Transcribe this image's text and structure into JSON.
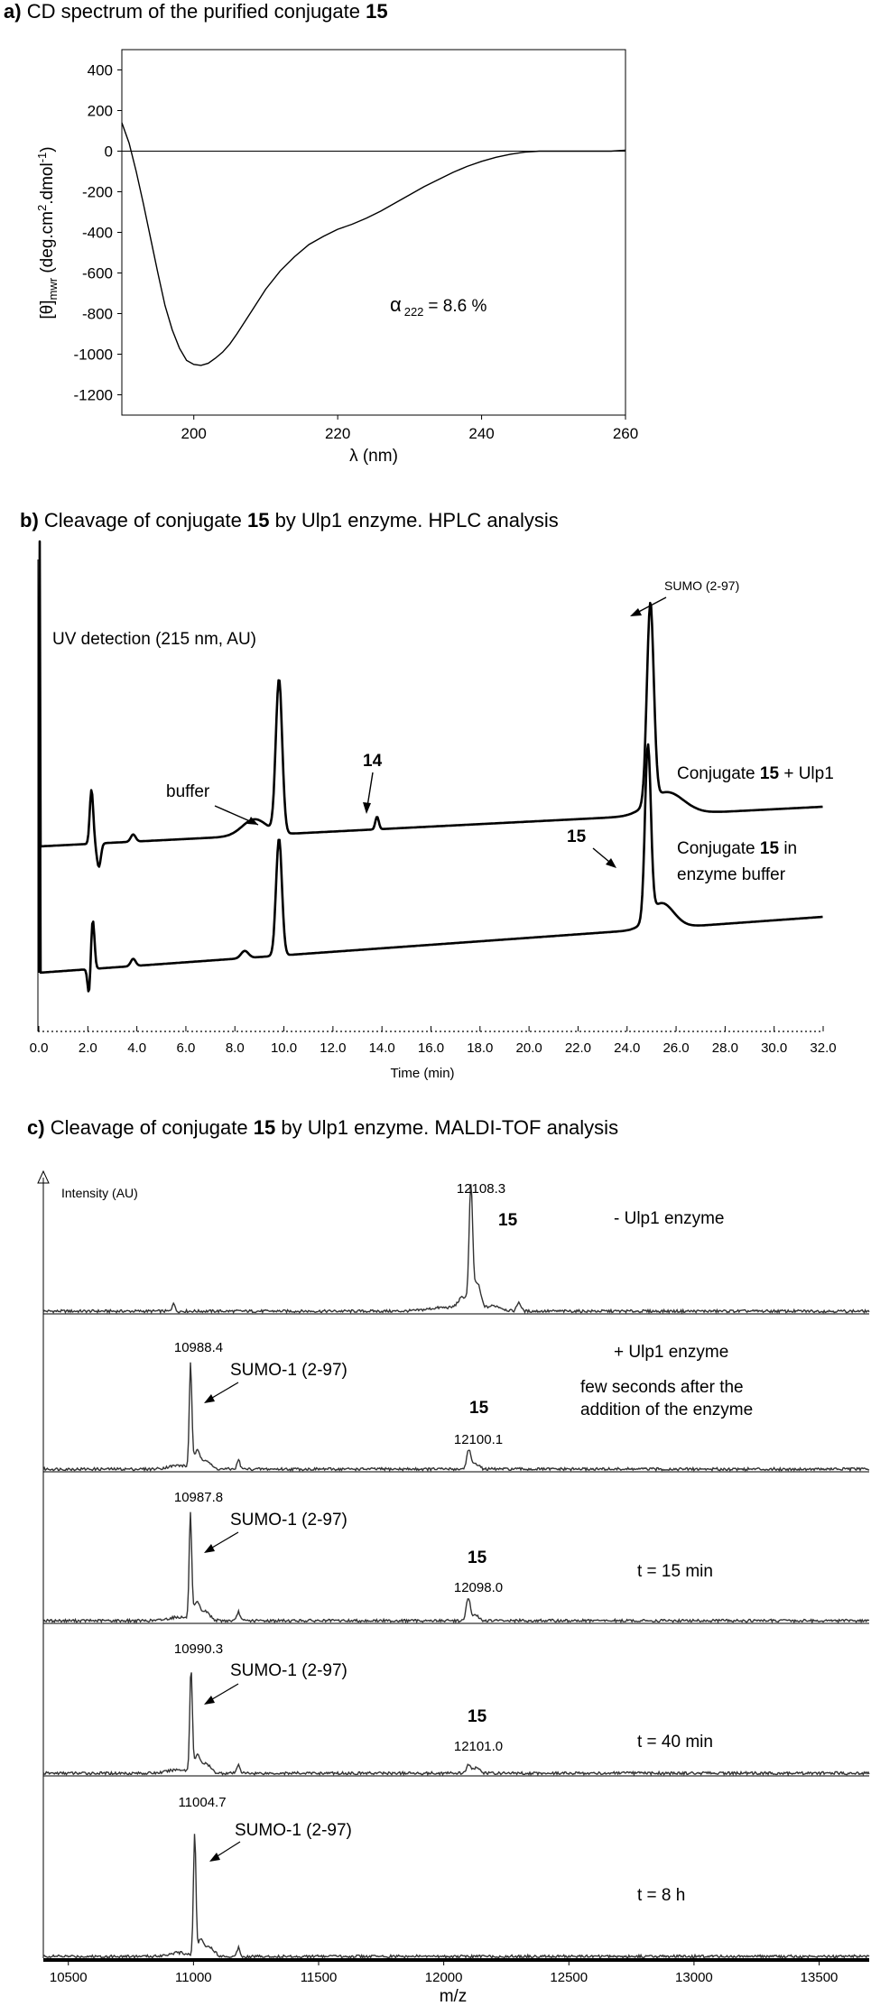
{
  "panel_a": {
    "caption_letter": "a)",
    "caption_text": "CD spectrum of the purified conjugate",
    "caption_compound": "15",
    "annotation": {
      "symbol": "α",
      "subscript": "222",
      "value": "= 8.6 %"
    },
    "ylabel": {
      "theta": "[θ]",
      "sub": "mwr",
      "rest": "(deg.cm",
      "sq": "2",
      "rest2": ".dmol",
      "neg": "-1",
      "close": ")"
    },
    "xlabel": {
      "symbol": "λ",
      "text": "(nm)"
    },
    "chart_data": {
      "type": "line",
      "xlim": [
        190,
        260
      ],
      "ylim": [
        -1300,
        500
      ],
      "x_ticks": [
        200,
        220,
        240,
        260
      ],
      "y_ticks": [
        400,
        200,
        0,
        -200,
        -400,
        -600,
        -800,
        -1000,
        -1200
      ],
      "zero_line": true,
      "series": [
        {
          "x": [
            190,
            191,
            192,
            193,
            194,
            195,
            196,
            197,
            198,
            199,
            200,
            201,
            202,
            203,
            204,
            205,
            206,
            208,
            210,
            212,
            214,
            216,
            218,
            220,
            222,
            224,
            226,
            228,
            230,
            232,
            234,
            236,
            238,
            240,
            242,
            244,
            246,
            248,
            250,
            252,
            254,
            256,
            258,
            260
          ],
          "y": [
            140,
            40,
            -100,
            -260,
            -430,
            -600,
            -760,
            -880,
            -970,
            -1030,
            -1050,
            -1055,
            -1045,
            -1020,
            -990,
            -950,
            -900,
            -790,
            -680,
            -590,
            -520,
            -460,
            -420,
            -385,
            -360,
            -330,
            -295,
            -255,
            -215,
            -175,
            -140,
            -105,
            -75,
            -50,
            -30,
            -15,
            -5,
            0,
            0,
            0,
            0,
            0,
            0,
            5
          ]
        }
      ]
    }
  },
  "panel_b": {
    "caption_letter": "b)",
    "caption_pre": "Cleavage of conjugate",
    "caption_compound": "15",
    "caption_post": "by Ulp1 enzyme. HPLC analysis",
    "uv_label": "UV detection (215 nm, AU)",
    "buffer_label": "buffer",
    "peak_14_label": "14",
    "peak_15_label": "15",
    "sumo_label": "SUMO (2-97)",
    "trace1_label": {
      "pre": "Conjugate",
      "compound": "15",
      "post": "+ Ulp1"
    },
    "trace2_label": {
      "pre": "Conjugate",
      "compound": "15",
      "post": "in",
      "line2": "enzyme buffer"
    },
    "xlabel": "Time (min)",
    "chart_data": {
      "type": "line",
      "xlim": [
        0,
        32
      ],
      "x_ticks": [
        "0.0",
        "2.0",
        "4.0",
        "6.0",
        "8.0",
        "10.0",
        "12.0",
        "14.0",
        "16.0",
        "18.0",
        "20.0",
        "22.0",
        "24.0",
        "26.0",
        "28.0",
        "30.0",
        "32.0"
      ],
      "series": [
        {
          "name": "Conjugate 15 + Ulp1",
          "baseline_start": 0,
          "baseline_end": 1,
          "peaks_min": [
            2.2,
            3.8,
            9.7,
            13.8,
            24.9
          ]
        },
        {
          "name": "Conjugate 15 in enzyme buffer",
          "baseline_start": 0,
          "baseline_end": 1,
          "peaks_min": [
            2.2,
            3.8,
            9.7,
            24.8
          ]
        }
      ]
    }
  },
  "panel_c": {
    "caption_letter": "c)",
    "caption_pre": "Cleavage of conjugate",
    "caption_compound": "15",
    "caption_post": "by Ulp1 enzyme. MALDI-TOF  analysis",
    "ylabel": "Intensity (AU)",
    "xlabel": "m/z",
    "sumo_label": "SUMO-1 (2-97)",
    "compound_label": "15",
    "chart_data": {
      "type": "line",
      "xlim": [
        10400,
        13700
      ],
      "x_ticks": [
        10500,
        11000,
        11500,
        12000,
        12500,
        13000,
        13500
      ],
      "spectra": [
        {
          "condition": "- Ulp1 enzyme",
          "peak_15": "12108.3"
        },
        {
          "condition": "+ Ulp1 enzyme",
          "note_line1": "few seconds after the",
          "note_line2": "addition of the enzyme",
          "peak_sumo": "10988.4",
          "peak_15": "12100.1"
        },
        {
          "condition": "t = 15 min",
          "peak_sumo": "10987.8",
          "peak_15": "12098.0"
        },
        {
          "condition": "t = 40 min",
          "peak_sumo": "10990.3",
          "peak_15": "12101.0"
        },
        {
          "condition": "t = 8 h",
          "peak_sumo": "11004.7"
        }
      ]
    }
  }
}
